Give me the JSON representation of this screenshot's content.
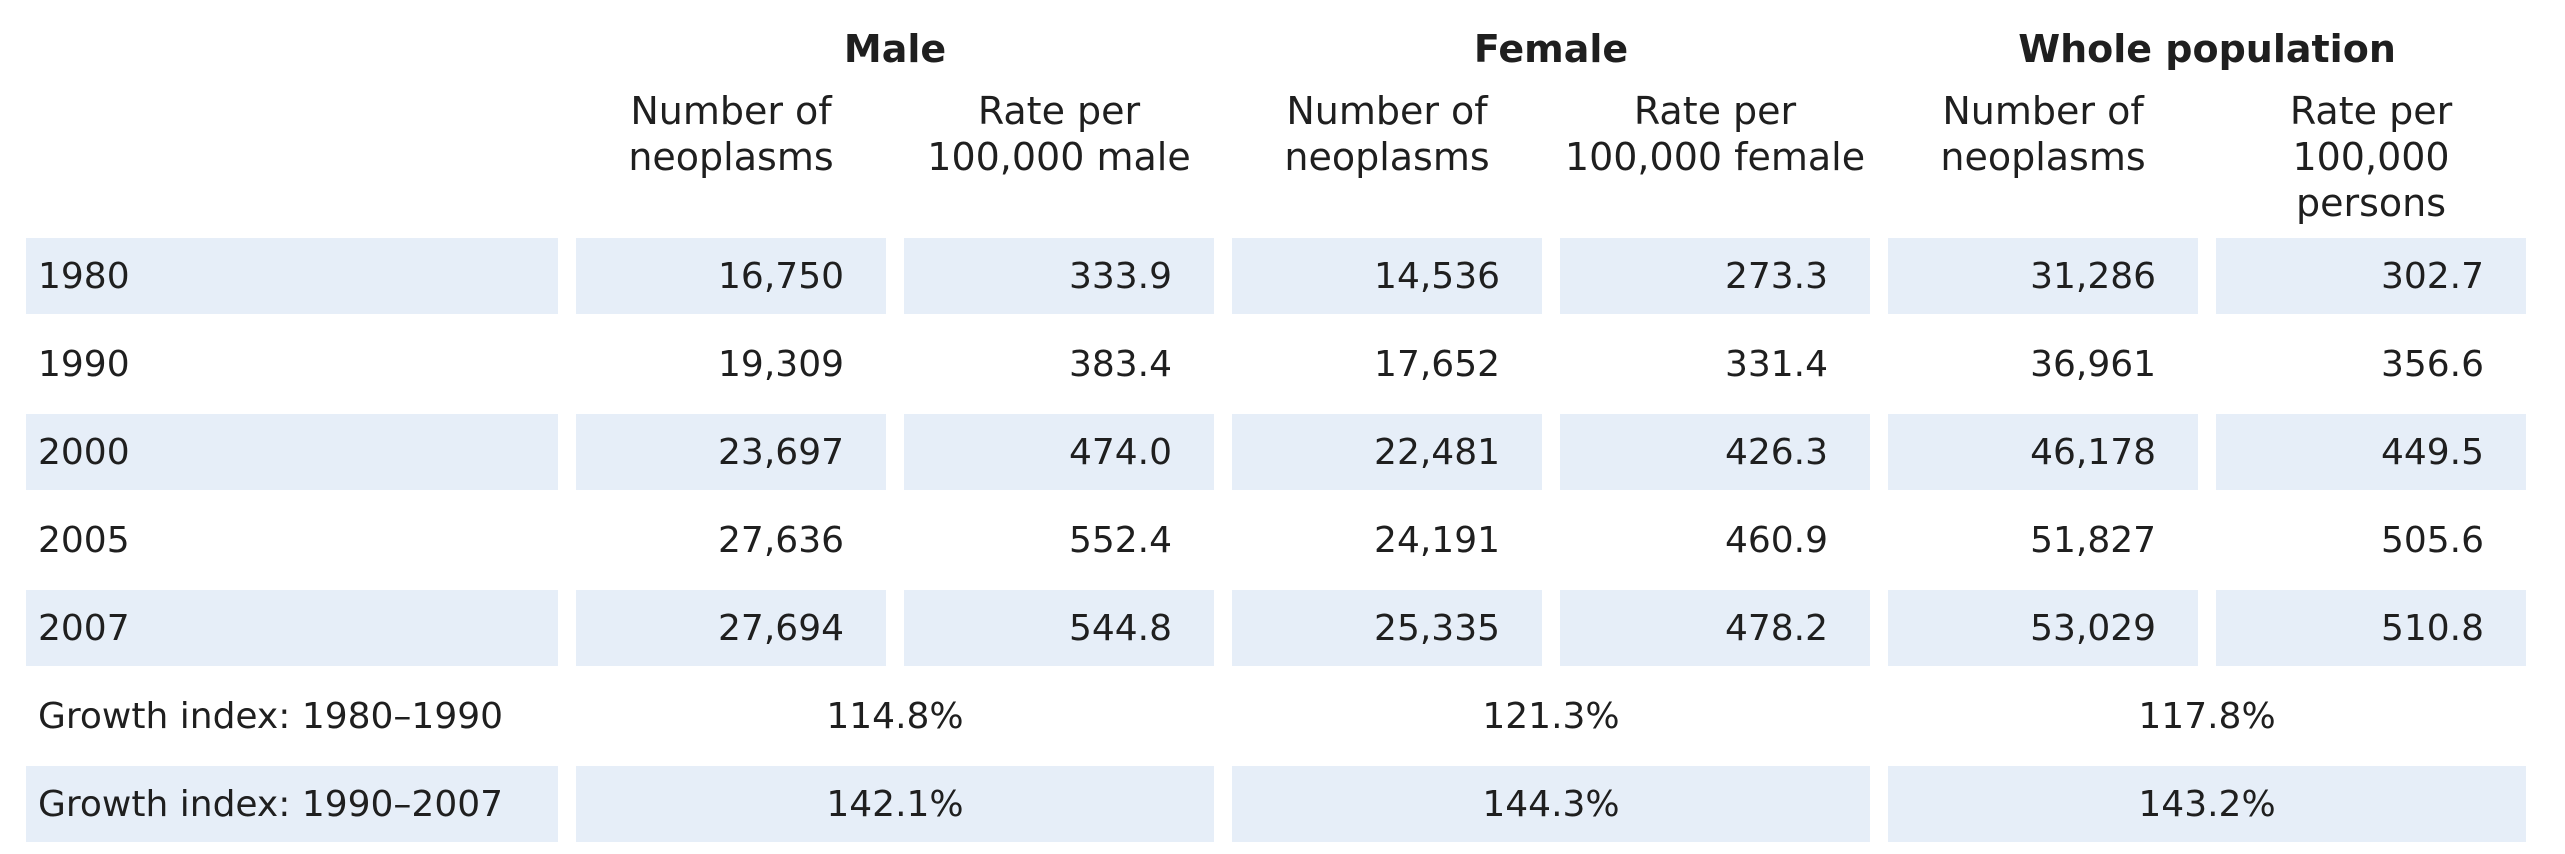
{
  "headers": {
    "groups": [
      "Male",
      "Female",
      "Whole population"
    ],
    "subs": [
      [
        "Number of",
        "neoplasms"
      ],
      [
        "Rate per",
        "100,000 male"
      ],
      [
        "Number of",
        "neoplasms"
      ],
      [
        "Rate per",
        "100,000 female"
      ],
      [
        "Number of",
        "neoplasms"
      ],
      [
        "Rate per",
        "100,000 persons"
      ]
    ]
  },
  "rows": [
    {
      "year": "1980",
      "values": [
        "16,750",
        "333.9",
        "14,536",
        "273.3",
        "31,286",
        "302.7"
      ]
    },
    {
      "year": "1990",
      "values": [
        "19,309",
        "383.4",
        "17,652",
        "331.4",
        "36,961",
        "356.6"
      ]
    },
    {
      "year": "2000",
      "values": [
        "23,697",
        "474.0",
        "22,481",
        "426.3",
        "46,178",
        "449.5"
      ]
    },
    {
      "year": "2005",
      "values": [
        "27,636",
        "552.4",
        "24,191",
        "460.9",
        "51,827",
        "505.6"
      ]
    },
    {
      "year": "2007",
      "values": [
        "27,694",
        "544.8",
        "25,335",
        "478.2",
        "53,029",
        "510.8"
      ]
    }
  ],
  "growth": [
    {
      "label": "Growth index: 1980–1990",
      "values": [
        "114.8%",
        "121.3%",
        "117.8%"
      ]
    },
    {
      "label": "Growth index: 1990–2007",
      "values": [
        "142.1%",
        "144.3%",
        "143.2%"
      ]
    }
  ]
}
